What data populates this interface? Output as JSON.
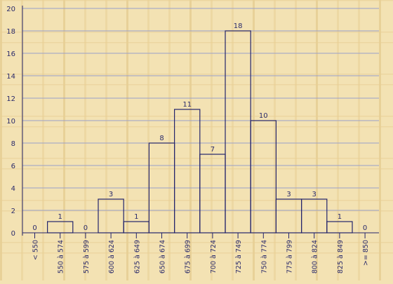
{
  "chart_data": {
    "type": "bar",
    "categories": [
      "< 550",
      "550 à 574",
      "575 à 599",
      "600 à 624",
      "625 à 649",
      "650 à 674",
      "675 à 699",
      "700 à 724",
      "725 à 749",
      "750 à 774",
      "775 à 799",
      "800 à 824",
      "825 à 849",
      ">= 850"
    ],
    "values": [
      0,
      1,
      0,
      3,
      1,
      8,
      11,
      7,
      18,
      10,
      3,
      3,
      1,
      0
    ],
    "ylim": [
      0,
      20
    ],
    "yticks": [
      0,
      2,
      4,
      6,
      8,
      10,
      12,
      14,
      16,
      18,
      20
    ],
    "grid": true,
    "xlabel": "",
    "ylabel": "",
    "title": ""
  },
  "colors": {
    "background": "#f3e2b3",
    "wood_stripe": "#e7cf95",
    "grid": "#9aa0c8",
    "bar_stroke": "#24246b",
    "text": "#2b2b6b"
  }
}
